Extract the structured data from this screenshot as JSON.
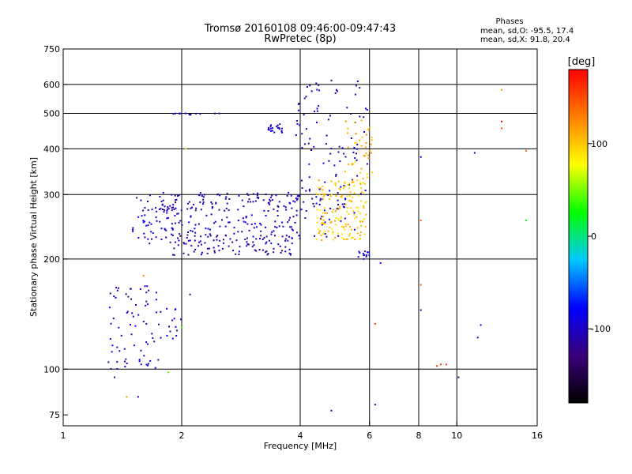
{
  "chart_data": {
    "type": "scatter",
    "title": "Tromsø 20160108 09:46:00-09:47:43",
    "subtitle": "RwPretec (8p)",
    "xlabel": "Frequency [MHz]",
    "ylabel": "Stationary phase Virtual Height [km]",
    "x_scale": "log",
    "y_scale": "log",
    "xlim": [
      1,
      16
    ],
    "ylim": [
      70,
      750
    ],
    "x_ticks": [
      1,
      2,
      4,
      6,
      8,
      10,
      16
    ],
    "x_tick_labels": [
      "1",
      "2",
      "4",
      "6",
      "8",
      "10",
      "16"
    ],
    "y_ticks": [
      75,
      100,
      200,
      300,
      400,
      500,
      600,
      750
    ],
    "y_tick_labels": [
      "75",
      "100",
      "200",
      "300",
      "400",
      "500",
      "600",
      "750"
    ],
    "grid": true,
    "stats": {
      "heading": "Phases",
      "line1": "mean, sd,O: -95.5, 17.4",
      "line2": "mean, sd,X:  91.8, 20.4"
    },
    "colorbar": {
      "label": "[deg]",
      "range": [
        -180,
        180
      ],
      "ticks": [
        100,
        0,
        -100
      ],
      "tick_labels": [
        "100",
        "0",
        "-100"
      ],
      "colors": [
        "#000000",
        "#3a007a",
        "#0000ff",
        "#00c8ff",
        "#00ff00",
        "#ffff00",
        "#ff8000",
        "#ff0000"
      ]
    },
    "clusters": [
      {
        "phase": -100,
        "n": 70,
        "f": [
          1.5,
          2.0
        ],
        "h": [
          220,
          300
        ]
      },
      {
        "phase": -105,
        "n": 110,
        "f": [
          1.75,
          4.0
        ],
        "h": [
          270,
          305
        ]
      },
      {
        "phase": -110,
        "n": 110,
        "f": [
          1.9,
          4.0
        ],
        "h": [
          205,
          235
        ]
      },
      {
        "phase": -95,
        "n": 70,
        "f": [
          2.0,
          4.0
        ],
        "h": [
          230,
          265
        ]
      },
      {
        "phase": -100,
        "n": 90,
        "f": [
          3.9,
          6.0
        ],
        "h": [
          300,
          620
        ]
      },
      {
        "phase": -100,
        "n": 40,
        "f": [
          4.0,
          5.5
        ],
        "h": [
          230,
          300
        ]
      },
      {
        "phase": 100,
        "n": 160,
        "f": [
          4.4,
          5.9
        ],
        "h": [
          225,
          330
        ]
      },
      {
        "phase": 110,
        "n": 40,
        "f": [
          5.2,
          6.2
        ],
        "h": [
          330,
          480
        ]
      },
      {
        "phase": -100,
        "n": 70,
        "f": [
          1.3,
          1.75
        ],
        "h": [
          100,
          170
        ]
      },
      {
        "phase": -95,
        "n": 15,
        "f": [
          1.75,
          2.0
        ],
        "h": [
          120,
          150
        ]
      },
      {
        "phase": -100,
        "n": 12,
        "f": [
          1.9,
          2.6
        ],
        "h": [
          495,
          500
        ]
      },
      {
        "phase": -100,
        "n": 20,
        "f": [
          3.3,
          3.6
        ],
        "h": [
          440,
          470
        ]
      },
      {
        "phase": -90,
        "n": 14,
        "f": [
          5.5,
          6.0
        ],
        "h": [
          200,
          210
        ]
      }
    ],
    "points": [
      {
        "f": 8.1,
        "h": 380,
        "phase": -100
      },
      {
        "f": 8.1,
        "h": 255,
        "phase": 140
      },
      {
        "f": 8.1,
        "h": 170,
        "phase": 140
      },
      {
        "f": 8.1,
        "h": 145,
        "phase": -120
      },
      {
        "f": 8.9,
        "h": 102,
        "phase": 160
      },
      {
        "f": 9.1,
        "h": 103,
        "phase": 160
      },
      {
        "f": 9.4,
        "h": 103,
        "phase": 160
      },
      {
        "f": 10.1,
        "h": 95,
        "phase": -110
      },
      {
        "f": 11.1,
        "h": 390,
        "phase": -100
      },
      {
        "f": 11.5,
        "h": 132,
        "phase": -80
      },
      {
        "f": 11.3,
        "h": 122,
        "phase": -100
      },
      {
        "f": 13.0,
        "h": 580,
        "phase": 120
      },
      {
        "f": 13.0,
        "h": 475,
        "phase": 180
      },
      {
        "f": 13.0,
        "h": 455,
        "phase": 150
      },
      {
        "f": 15.0,
        "h": 395,
        "phase": 140
      },
      {
        "f": 15.0,
        "h": 255,
        "phase": 30
      },
      {
        "f": 6.4,
        "h": 195,
        "phase": -80
      },
      {
        "f": 6.2,
        "h": 80,
        "phase": -110
      },
      {
        "f": 6.2,
        "h": 133,
        "phase": 150
      },
      {
        "f": 4.8,
        "h": 77,
        "phase": -100
      },
      {
        "f": 1.55,
        "h": 84,
        "phase": -110
      },
      {
        "f": 1.45,
        "h": 84,
        "phase": 120
      },
      {
        "f": 1.85,
        "h": 98,
        "phase": 40
      },
      {
        "f": 1.35,
        "h": 95,
        "phase": -120
      },
      {
        "f": 2.05,
        "h": 400,
        "phase": 60
      },
      {
        "f": 2.1,
        "h": 160,
        "phase": -100
      },
      {
        "f": 2.0,
        "h": 130,
        "phase": 40
      },
      {
        "f": 1.6,
        "h": 180,
        "phase": 120
      }
    ]
  }
}
